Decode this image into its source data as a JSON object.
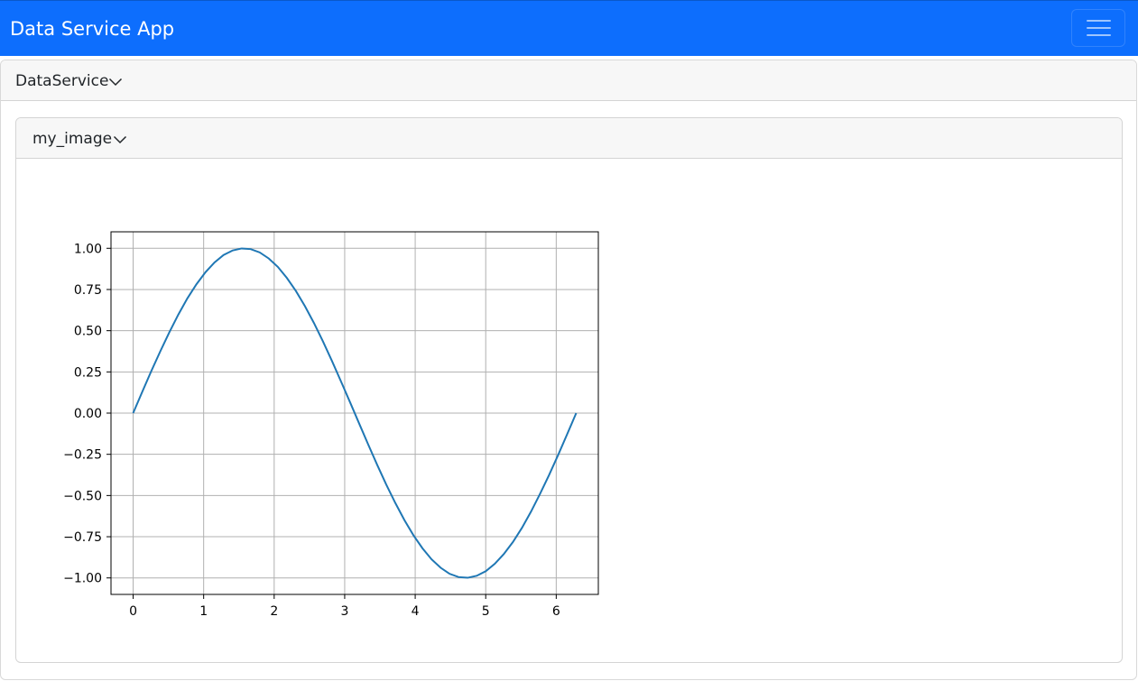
{
  "navbar": {
    "brand": "Data Service App",
    "toggler_icon": "hamburger-menu-icon"
  },
  "service_panel": {
    "title": "DataService",
    "chevron_icon": "chevron-down-icon"
  },
  "image_panel": {
    "title": "my_image",
    "chevron_icon": "chevron-down-icon"
  },
  "colors": {
    "navbar": "#0d6efd",
    "series": "#1f77b4",
    "grid": "#b0b0b0"
  },
  "chart_data": {
    "type": "line",
    "title": "",
    "xlabel": "",
    "ylabel": "",
    "grid": true,
    "xlim": [
      -0.314,
      6.597
    ],
    "ylim": [
      -1.1,
      1.1
    ],
    "x_ticks": [
      0,
      1,
      2,
      3,
      4,
      5,
      6
    ],
    "x_tick_labels": [
      "0",
      "1",
      "2",
      "3",
      "4",
      "5",
      "6"
    ],
    "y_ticks": [
      1.0,
      0.75,
      0.5,
      0.25,
      0.0,
      -0.25,
      -0.5,
      -0.75,
      -1.0
    ],
    "y_tick_labels": [
      "1.00",
      "0.75",
      "0.50",
      "0.25",
      "0.00",
      "−0.25",
      "−0.50",
      "−0.75",
      "−1.00"
    ],
    "series": [
      {
        "function": "sin(x)",
        "x": [
          0,
          0.128,
          0.256,
          0.385,
          0.513,
          0.641,
          0.769,
          0.898,
          1.026,
          1.154,
          1.282,
          1.411,
          1.539,
          1.667,
          1.795,
          1.924,
          2.052,
          2.18,
          2.308,
          2.436,
          2.565,
          2.693,
          2.821,
          2.949,
          3.078,
          3.206,
          3.334,
          3.462,
          3.59,
          3.719,
          3.847,
          3.975,
          4.103,
          4.232,
          4.36,
          4.488,
          4.616,
          4.744,
          4.873,
          5.001,
          5.129,
          5.257,
          5.386,
          5.514,
          5.642,
          5.77,
          5.899,
          6.027,
          6.155,
          6.283
        ],
        "y": [
          0,
          0.128,
          0.254,
          0.375,
          0.49,
          0.598,
          0.696,
          0.782,
          0.855,
          0.914,
          0.959,
          0.987,
          0.999,
          0.995,
          0.975,
          0.938,
          0.887,
          0.82,
          0.741,
          0.649,
          0.546,
          0.434,
          0.315,
          0.191,
          0.064,
          -0.064,
          -0.191,
          -0.315,
          -0.434,
          -0.546,
          -0.649,
          -0.741,
          -0.82,
          -0.887,
          -0.938,
          -0.975,
          -0.995,
          -0.999,
          -0.987,
          -0.959,
          -0.914,
          -0.855,
          -0.782,
          -0.696,
          -0.598,
          -0.49,
          -0.375,
          -0.254,
          -0.128,
          0
        ]
      }
    ]
  }
}
